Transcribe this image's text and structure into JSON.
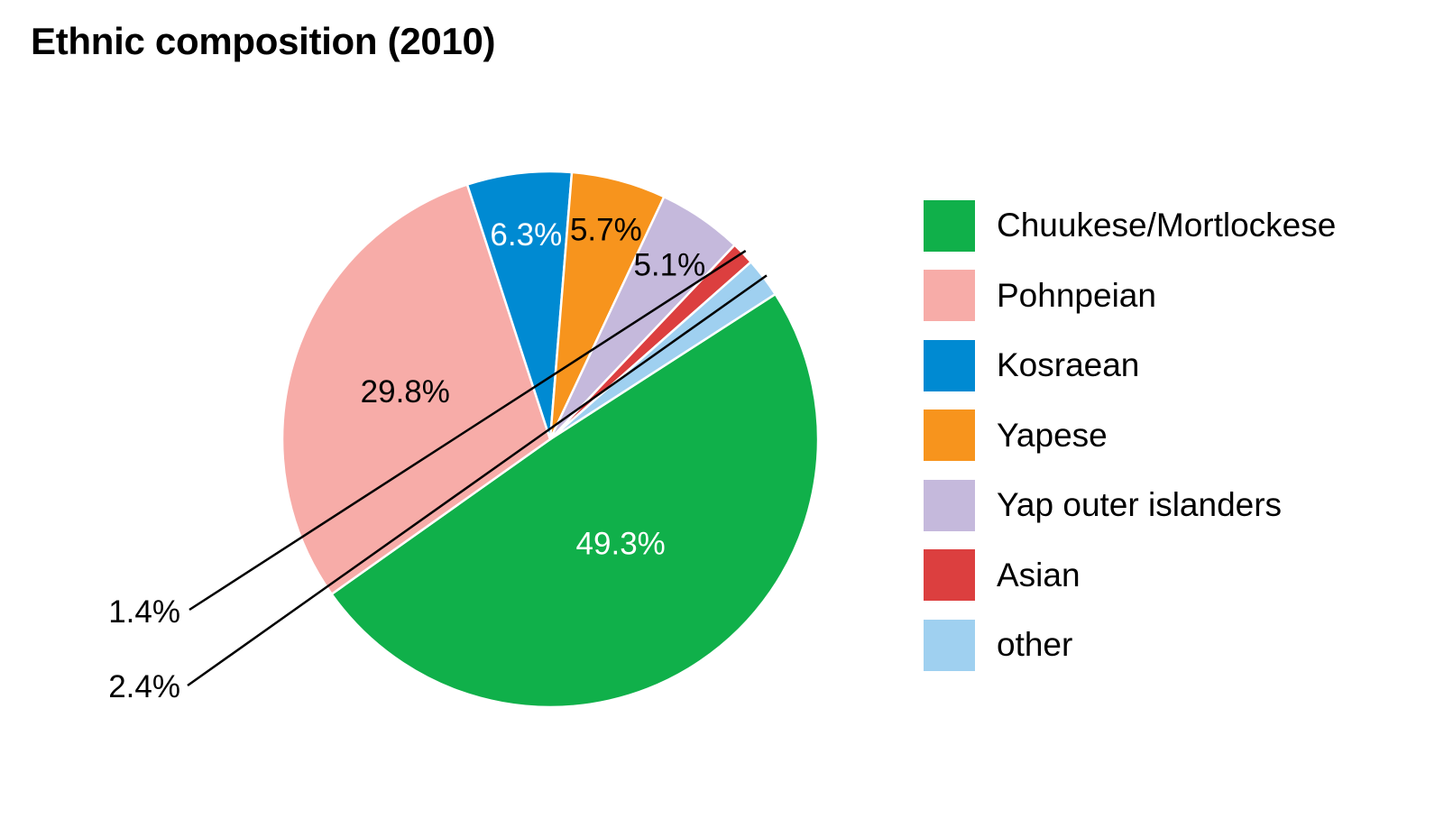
{
  "chart_data": {
    "type": "pie",
    "title": "Ethnic composition (2010)",
    "slices": [
      {
        "name": "Chuukese/Mortlockese",
        "value": 49.3,
        "label": "49.3%",
        "color": "#10b04a",
        "label_color": "#ffffff"
      },
      {
        "name": "Pohnpeian",
        "value": 29.8,
        "label": "29.8%",
        "color": "#f7aca8",
        "label_color": "#000000"
      },
      {
        "name": "Kosraean",
        "value": 6.3,
        "label": "6.3%",
        "color": "#008ad2",
        "label_color": "#ffffff"
      },
      {
        "name": "Yapese",
        "value": 5.7,
        "label": "5.7%",
        "color": "#f7941d",
        "label_color": "#000000"
      },
      {
        "name": "Yap outer islanders",
        "value": 5.1,
        "label": "5.1%",
        "color": "#c5b9dc",
        "label_color": "#000000"
      },
      {
        "name": "Asian",
        "value": 1.4,
        "label": "1.4%",
        "color": "#dc3f3f",
        "label_color": "#000000"
      },
      {
        "name": "other",
        "value": 2.4,
        "label": "2.4%",
        "color": "#9fd0f0",
        "label_color": "#000000"
      }
    ],
    "legend_position": "right"
  }
}
